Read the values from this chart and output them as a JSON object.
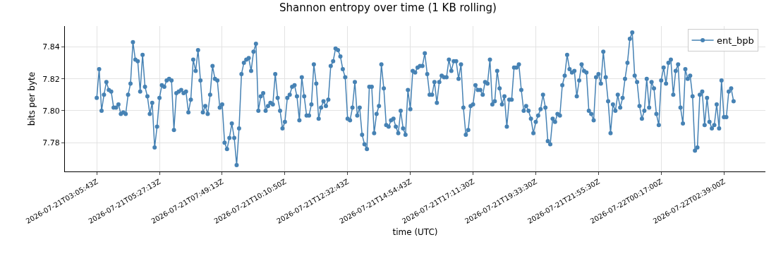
{
  "chart_data": {
    "type": "line",
    "title": "Shannon entropy over time (1 KB rolling)",
    "xlabel": "time (UTC)",
    "ylabel": "bits per byte",
    "categories": [
      "2026-07-21T03:05:43Z",
      null,
      null,
      null,
      null,
      null,
      null,
      null,
      null,
      null,
      null,
      null,
      null,
      null,
      null,
      null,
      null,
      null,
      null,
      null,
      null,
      null,
      null,
      null,
      null,
      null,
      "2026-07-21T05:27:13Z",
      null,
      null,
      null,
      null,
      null,
      null,
      null,
      null,
      null,
      null,
      null,
      null,
      null,
      null,
      null,
      null,
      null,
      null,
      null,
      null,
      null,
      null,
      null,
      null,
      null,
      "2026-07-21T07:49:13Z",
      null,
      null,
      null,
      null,
      null,
      null,
      null,
      null,
      null,
      null,
      null,
      null,
      null,
      null,
      null,
      null,
      null,
      null,
      null,
      null,
      null,
      null,
      null,
      null,
      null,
      "2026-07-21T10:10:50Z",
      null,
      null,
      null,
      null,
      null,
      null,
      null,
      null,
      null,
      null,
      null,
      null,
      null,
      null,
      null,
      null,
      null,
      null,
      null,
      null,
      null,
      null,
      null,
      null,
      null,
      "2026-07-21T12:32:43Z",
      null,
      null,
      null,
      null,
      null,
      null,
      null,
      null,
      null,
      null,
      null,
      null,
      null,
      null,
      null,
      null,
      null,
      null,
      null,
      null,
      null,
      null,
      null,
      null,
      null,
      "2026-07-21T14:54:43Z",
      null,
      null,
      null,
      null,
      null,
      null,
      null,
      null,
      null,
      null,
      null,
      null,
      null,
      null,
      null,
      null,
      null,
      null,
      null,
      null,
      null,
      null,
      null,
      null,
      null,
      "2026-07-21T17:11:30Z",
      null,
      null,
      null,
      null,
      null,
      null,
      null,
      null,
      null,
      null,
      null,
      null,
      null,
      null,
      null,
      null,
      null,
      null,
      null,
      null,
      null,
      null,
      null,
      null,
      null,
      "2026-07-21T19:33:30Z",
      null,
      null,
      null,
      null,
      null,
      null,
      null,
      null,
      null,
      null,
      null,
      null,
      null,
      null,
      null,
      null,
      null,
      null,
      null,
      null,
      null,
      null,
      null,
      null,
      null,
      "2026-07-21T21:55:30Z",
      null,
      null,
      null,
      null,
      null,
      null,
      null,
      null,
      null,
      null,
      null,
      null,
      null,
      null,
      null,
      null,
      null,
      null,
      null,
      null,
      null,
      null,
      null,
      null,
      null,
      "2026-07-22T00:17:00Z",
      null,
      null,
      null,
      null,
      null,
      null,
      null,
      null,
      null,
      null,
      null,
      null,
      null,
      null,
      null,
      null,
      null,
      null,
      null,
      null,
      null,
      null,
      null,
      null,
      null,
      "2026-07-22T02:39:00Z",
      null,
      null,
      null,
      null
    ],
    "series": [
      {
        "name": "ent_bpb",
        "color": "#4682b4",
        "values": [
          7.808,
          7.826,
          7.8,
          7.81,
          7.818,
          7.813,
          7.812,
          7.802,
          7.802,
          7.804,
          7.798,
          7.799,
          7.798,
          7.81,
          7.817,
          7.843,
          7.832,
          7.831,
          7.812,
          7.835,
          7.815,
          7.809,
          7.798,
          7.805,
          7.777,
          7.79,
          7.808,
          7.816,
          7.815,
          7.819,
          7.82,
          7.819,
          7.788,
          7.811,
          7.812,
          7.813,
          7.811,
          7.812,
          7.799,
          7.807,
          7.832,
          7.825,
          7.838,
          7.819,
          7.799,
          7.803,
          7.798,
          7.81,
          7.828,
          7.82,
          7.819,
          7.802,
          7.804,
          7.78,
          7.776,
          7.783,
          7.792,
          7.783,
          7.766,
          7.789,
          7.823,
          7.83,
          7.832,
          7.833,
          7.825,
          7.837,
          7.842,
          7.8,
          7.809,
          7.811,
          7.8,
          7.803,
          7.805,
          7.804,
          7.823,
          7.808,
          7.8,
          7.789,
          7.793,
          7.808,
          7.81,
          7.815,
          7.816,
          7.809,
          7.794,
          7.821,
          7.809,
          7.797,
          7.797,
          7.804,
          7.829,
          7.817,
          7.795,
          7.802,
          7.806,
          7.803,
          7.807,
          7.828,
          7.831,
          7.839,
          7.838,
          7.834,
          7.826,
          7.821,
          7.795,
          7.794,
          7.802,
          7.818,
          7.797,
          7.802,
          7.785,
          7.779,
          7.776,
          7.815,
          7.815,
          7.786,
          7.798,
          7.803,
          7.829,
          7.814,
          7.791,
          7.79,
          7.794,
          7.795,
          7.79,
          7.786,
          7.8,
          7.789,
          7.785,
          7.813,
          7.801,
          7.825,
          7.824,
          7.827,
          7.828,
          7.828,
          7.836,
          7.823,
          7.81,
          7.81,
          7.818,
          7.805,
          7.818,
          7.822,
          7.821,
          7.821,
          7.832,
          7.825,
          7.831,
          7.831,
          7.82,
          7.829,
          7.802,
          7.785,
          7.788,
          7.803,
          7.804,
          7.816,
          7.813,
          7.813,
          7.81,
          7.818,
          7.817,
          7.832,
          7.804,
          7.806,
          7.825,
          7.814,
          7.804,
          7.809,
          7.79,
          7.807,
          7.807,
          7.827,
          7.827,
          7.829,
          7.813,
          7.8,
          7.803,
          7.8,
          7.795,
          7.786,
          7.793,
          7.797,
          7.801,
          7.81,
          7.802,
          7.781,
          7.779,
          7.795,
          7.793,
          7.798,
          7.797,
          7.816,
          7.822,
          7.835,
          7.826,
          7.824,
          7.825,
          7.809,
          7.819,
          7.829,
          7.825,
          7.824,
          7.8,
          7.798,
          7.794,
          7.821,
          7.823,
          7.817,
          7.837,
          7.821,
          7.806,
          7.786,
          7.804,
          7.8,
          7.81,
          7.802,
          7.808,
          7.82,
          7.83,
          7.845,
          7.849,
          7.822,
          7.818,
          7.803,
          7.795,
          7.8,
          7.82,
          7.802,
          7.818,
          7.814,
          7.798,
          7.791,
          7.819,
          7.827,
          7.817,
          7.83,
          7.832,
          7.81,
          7.825,
          7.829,
          7.802,
          7.792,
          7.826,
          7.82,
          7.822,
          7.809,
          7.775,
          7.777,
          7.81,
          7.812,
          7.791,
          7.808,
          7.793,
          7.789,
          7.791,
          7.804,
          7.789,
          7.819,
          7.796,
          7.796,
          7.812,
          7.814,
          7.806
        ]
      }
    ],
    "ylim": [
      7.762,
      7.853
    ],
    "yticks": [
      7.78,
      {
        "value": 7.8,
        "label": "7.80"
      },
      7.82,
      7.84
    ],
    "grid": true,
    "legend": "top right",
    "marker": "circle",
    "line_style": "solid"
  }
}
